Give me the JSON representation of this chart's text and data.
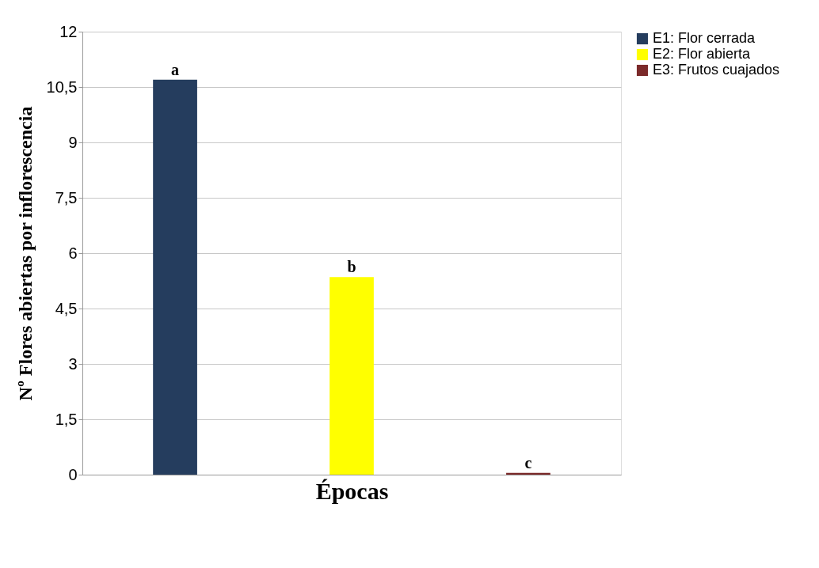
{
  "chart_data": {
    "type": "bar",
    "xlabel": "Épocas",
    "ylabel": "Nº Flores abiertas por inflorescencia",
    "categories": [
      null,
      null,
      null
    ],
    "series": [
      {
        "name": "E1: Flor cerrada",
        "color": "#253d5e",
        "values": [
          10.7,
          null,
          null
        ],
        "value_labels": [
          "a",
          null,
          null
        ]
      },
      {
        "name": "E2: Flor abierta",
        "color": "#ffff00",
        "values": [
          null,
          5.35,
          null
        ],
        "value_labels": [
          null,
          "b",
          null
        ]
      },
      {
        "name": "E3: Frutos cuajados",
        "color": "#7b2a2a",
        "values": [
          null,
          null,
          0.05
        ],
        "value_labels": [
          null,
          null,
          "c"
        ]
      }
    ],
    "ylim": [
      0,
      12
    ],
    "yticks": [
      0,
      {
        "value": 1.5,
        "label": "1,5"
      },
      3,
      {
        "value": 4.5,
        "label": "4,5"
      },
      6,
      {
        "value": 7.5,
        "label": "7,5"
      },
      9,
      {
        "value": 10.5,
        "label": "10,5"
      },
      12
    ],
    "grid": "y",
    "legend": "right"
  }
}
